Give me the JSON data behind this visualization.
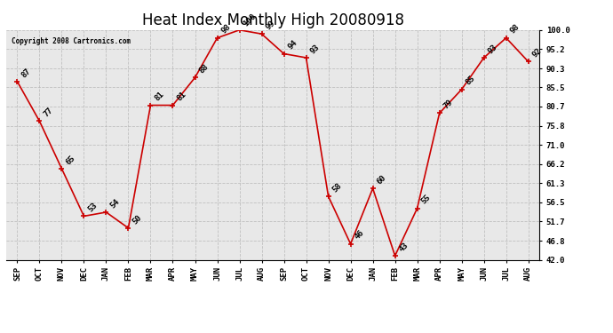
{
  "title": "Heat Index Monthly High 20080918",
  "copyright": "Copyright 2008 Cartronics.com",
  "months": [
    "SEP",
    "OCT",
    "NOV",
    "DEC",
    "JAN",
    "FEB",
    "MAR",
    "APR",
    "MAY",
    "JUN",
    "JUL",
    "AUG",
    "SEP",
    "OCT",
    "NOV",
    "DEC",
    "JAN",
    "FEB",
    "MAR",
    "APR",
    "MAY",
    "JUN",
    "JUL",
    "AUG"
  ],
  "values": [
    87,
    77,
    65,
    53,
    54,
    50,
    81,
    81,
    88,
    98,
    100,
    99,
    94,
    93,
    58,
    46,
    60,
    43,
    55,
    79,
    85,
    93,
    98,
    92
  ],
  "ylim": [
    42.0,
    100.0
  ],
  "yticks": [
    42.0,
    46.8,
    51.7,
    56.5,
    61.3,
    66.2,
    71.0,
    75.8,
    80.7,
    85.5,
    90.3,
    95.2,
    100.0
  ],
  "line_color": "#cc0000",
  "marker_color": "#cc0000",
  "plot_bg_color": "#e8e8e8",
  "fig_bg_color": "#ffffff",
  "grid_color": "#bbbbbb",
  "title_fontsize": 12,
  "tick_fontsize": 6.5,
  "annotation_fontsize": 6.5
}
